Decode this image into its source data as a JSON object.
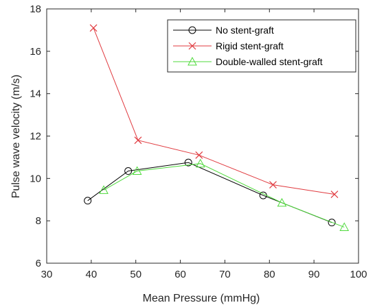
{
  "chart_data": {
    "type": "line",
    "title": "",
    "xlabel": "Mean Pressure (mmHg)",
    "ylabel": "Pulse wave velocity (m/s)",
    "xlim": [
      30,
      100
    ],
    "ylim": [
      6,
      18
    ],
    "xticks": [
      "30",
      "40",
      "50",
      "60",
      "70",
      "80",
      "90",
      "100"
    ],
    "yticks": [
      "6",
      "8",
      "10",
      "12",
      "14",
      "16",
      "18"
    ],
    "grid": false,
    "legend_position": "top-right",
    "series": [
      {
        "name": "No stent-graft",
        "color": "#000000",
        "marker": "circle",
        "points": [
          [
            39.2,
            8.95
          ],
          [
            48.3,
            10.35
          ],
          [
            61.8,
            10.75
          ],
          [
            78.6,
            9.2
          ],
          [
            94.0,
            7.92
          ]
        ]
      },
      {
        "name": "Rigid stent-graft",
        "color": "#e0393e",
        "marker": "x",
        "points": [
          [
            40.5,
            17.1
          ],
          [
            50.5,
            11.8
          ],
          [
            64.2,
            11.1
          ],
          [
            80.8,
            9.7
          ],
          [
            94.6,
            9.25
          ]
        ]
      },
      {
        "name": "Double-walled stent-graft",
        "color": "#4dd93a",
        "marker": "triangle",
        "points": [
          [
            42.8,
            9.45
          ],
          [
            50.3,
            10.35
          ],
          [
            64.5,
            10.7
          ],
          [
            82.8,
            8.85
          ],
          [
            96.8,
            7.7
          ]
        ]
      }
    ]
  }
}
